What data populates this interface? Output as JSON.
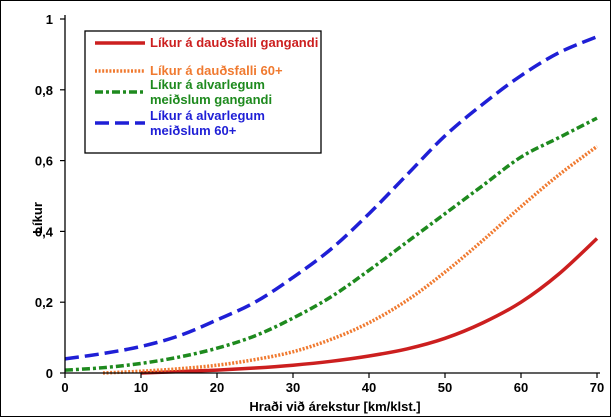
{
  "chart_data": {
    "type": "line",
    "xlabel": "Hraði við árekstur [km/klst.]",
    "ylabel": "Líkur",
    "xlim": [
      0,
      70
    ],
    "ylim": [
      0,
      1
    ],
    "x_ticks": [
      "0",
      "10",
      "20",
      "30",
      "40",
      "50",
      "60",
      "70"
    ],
    "y_ticks": [
      "0",
      "0,2",
      "0,4",
      "0,6",
      "0,8",
      "1"
    ],
    "grid": false,
    "legend_position": "top-left",
    "x": [
      0,
      5,
      10,
      15,
      20,
      25,
      30,
      35,
      40,
      45,
      50,
      55,
      60,
      65,
      70
    ],
    "series": [
      {
        "name": "Líkur á dauðsfalli gangandi",
        "color": "#cc1f1f",
        "style": "solid",
        "x": [
          10,
          15,
          20,
          25,
          30,
          35,
          40,
          45,
          50,
          55,
          60,
          65,
          70
        ],
        "values": [
          0.0,
          0.004,
          0.008,
          0.014,
          0.022,
          0.033,
          0.048,
          0.068,
          0.098,
          0.142,
          0.2,
          0.28,
          0.38
        ]
      },
      {
        "name": "Líkur á dauðsfalli 60+",
        "color": "#f07a30",
        "style": "dotted",
        "x": [
          5,
          10,
          15,
          20,
          25,
          30,
          35,
          40,
          45,
          50,
          55,
          60,
          65,
          70
        ],
        "values": [
          0.0,
          0.005,
          0.012,
          0.022,
          0.038,
          0.06,
          0.095,
          0.142,
          0.205,
          0.285,
          0.375,
          0.47,
          0.56,
          0.64
        ]
      },
      {
        "name": "Líkur á alvarlegum meiðslum gangandi",
        "color": "#1e8a1e",
        "style": "dashdot",
        "x": [
          0,
          5,
          10,
          15,
          20,
          25,
          30,
          35,
          40,
          45,
          50,
          55,
          60,
          65,
          70
        ],
        "values": [
          0.008,
          0.015,
          0.027,
          0.045,
          0.07,
          0.105,
          0.155,
          0.215,
          0.29,
          0.37,
          0.45,
          0.53,
          0.61,
          0.665,
          0.72
        ]
      },
      {
        "name": "Líkur á alvarlegum meiðslum 60+",
        "color": "#1f1fd6",
        "style": "dashed",
        "x": [
          0,
          5,
          10,
          15,
          20,
          25,
          30,
          35,
          40,
          45,
          50,
          55,
          60,
          65,
          70
        ],
        "values": [
          0.04,
          0.055,
          0.075,
          0.105,
          0.15,
          0.2,
          0.27,
          0.35,
          0.45,
          0.56,
          0.67,
          0.76,
          0.84,
          0.905,
          0.95
        ]
      }
    ]
  }
}
